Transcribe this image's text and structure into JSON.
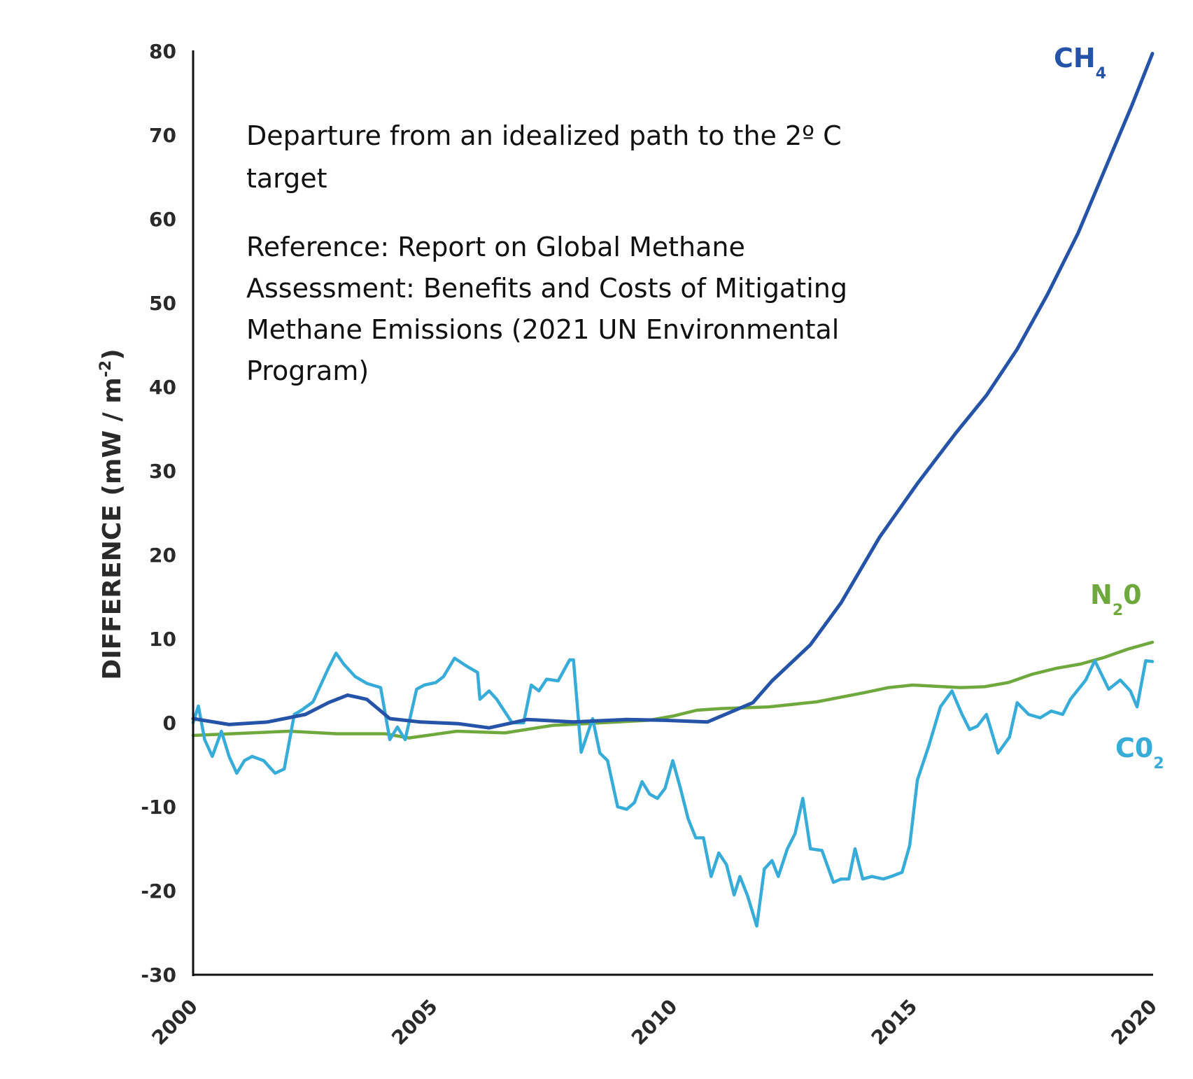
{
  "chart_data": {
    "type": "line",
    "title": "",
    "annotations": {
      "title_lines": [
        "Departure from an idealized path to the 2º C",
        "target"
      ],
      "reference_lines": [
        "Reference: Report on Global Methane",
        "Assessment: Benefits and Costs of Mitigating",
        "Methane Emissions (2021 UN Environmental",
        "Program)"
      ]
    },
    "xlabel": "",
    "ylabel": "DIFFERENCE (mW / m-2)",
    "ylabel_parts": {
      "main": "DIFFERENCE (mW / m",
      "sup": "-2",
      "end": ")"
    },
    "xlim": [
      2000,
      2020
    ],
    "ylim": [
      -30,
      80
    ],
    "xticks": [
      "2000",
      "2005",
      "2010",
      "2015",
      "2020"
    ],
    "yticks": [
      "80",
      "70",
      "60",
      "50",
      "40",
      "30",
      "20",
      "10",
      "0",
      "-10",
      "-20",
      "-30"
    ],
    "grid": false,
    "legend": "inline labels at line ends",
    "series": [
      {
        "name": "CH4",
        "label_main": "CH",
        "label_sub": "4",
        "color": "#2553a8",
        "x": [
          2000,
          2000.75,
          2001.55,
          2002.34,
          2002.82,
          2003.22,
          2003.62,
          2004.1,
          2004.74,
          2005.53,
          2006.17,
          2006.97,
          2007.93,
          2009.04,
          2009.84,
          2010.72,
          2011.67,
          2012.07,
          2012.87,
          2013.51,
          2014.31,
          2015.1,
          2015.9,
          2016.54,
          2017.18,
          2017.81,
          2018.45,
          2019.09,
          2019.57,
          2020
        ],
        "y": [
          0.5,
          -0.2,
          0.1,
          1.0,
          2.4,
          3.3,
          2.8,
          0.5,
          0.1,
          -0.1,
          -0.6,
          0.4,
          0.1,
          0.4,
          0.3,
          0.1,
          2.4,
          5.0,
          9.3,
          14.3,
          22.1,
          28.5,
          34.5,
          39.0,
          44.5,
          51.0,
          58.3,
          67.0,
          73.5,
          79.7
        ]
      },
      {
        "name": "N2O",
        "label_main": "N",
        "label_sub": "2",
        "label_end": "0",
        "color": "#6fa83d",
        "x": [
          2000,
          2002,
          2003,
          2004,
          2004.5,
          2005.5,
          2006.5,
          2007.5,
          2008.5,
          2009.5,
          2010,
          2010.5,
          2011,
          2012,
          2013,
          2014,
          2014.5,
          2015,
          2016,
          2016.5,
          2017,
          2017.5,
          2018,
          2018.5,
          2019,
          2019.5,
          2020
        ],
        "y": [
          -1.5,
          -1.0,
          -1.3,
          -1.3,
          -1.8,
          -1.0,
          -1.2,
          -0.3,
          0.0,
          0.3,
          0.8,
          1.5,
          1.7,
          1.9,
          2.5,
          3.6,
          4.2,
          4.5,
          4.2,
          4.3,
          4.8,
          5.8,
          6.5,
          7.0,
          7.8,
          8.8,
          9.6
        ]
      },
      {
        "name": "CO2",
        "label_main": "C0",
        "label_sub": "2",
        "color": "#38acd8",
        "x": [
          2000,
          2000.11,
          2000.24,
          2000.4,
          2000.59,
          2000.75,
          2000.91,
          2001.07,
          2001.23,
          2001.47,
          2001.71,
          2001.9,
          2002.11,
          2002.26,
          2002.5,
          2002.66,
          2002.82,
          2002.98,
          2003.14,
          2003.38,
          2003.62,
          2003.91,
          2004.1,
          2004.26,
          2004.42,
          2004.66,
          2004.82,
          2005.06,
          2005.22,
          2005.45,
          2005.69,
          2005.93,
          2005.98,
          2006.17,
          2006.33,
          2006.65,
          2006.89,
          2007.05,
          2007.21,
          2007.37,
          2007.61,
          2007.85,
          2007.93,
          2008.09,
          2008.33,
          2008.48,
          2008.64,
          2008.85,
          2009.04,
          2009.2,
          2009.36,
          2009.52,
          2009.68,
          2009.84,
          2010.0,
          2010.16,
          2010.32,
          2010.48,
          2010.64,
          2010.8,
          2010.96,
          2011.12,
          2011.28,
          2011.4,
          2011.56,
          2011.75,
          2011.91,
          2012.07,
          2012.2,
          2012.39,
          2012.55,
          2012.71,
          2012.87,
          2013.11,
          2013.35,
          2013.51,
          2013.67,
          2013.8,
          2013.96,
          2014.15,
          2014.39,
          2014.55,
          2014.78,
          2014.94,
          2015.1,
          2015.34,
          2015.58,
          2015.82,
          2016.03,
          2016.19,
          2016.35,
          2016.54,
          2016.78,
          2017.02,
          2017.18,
          2017.42,
          2017.66,
          2017.89,
          2018.13,
          2018.29,
          2018.61,
          2018.8,
          2019.09,
          2019.33,
          2019.54,
          2019.68,
          2019.86,
          2020.0
        ],
        "y": [
          0,
          2,
          -2,
          -4,
          -1,
          -4,
          -6,
          -4.5,
          -4,
          -4.5,
          -6,
          -5.5,
          1,
          1.5,
          2.5,
          4.5,
          6.5,
          8.3,
          7,
          5.5,
          4.7,
          4.2,
          -2,
          -0.5,
          -2,
          4,
          4.5,
          4.8,
          5.5,
          7.7,
          6.8,
          6,
          2.8,
          3.8,
          2.8,
          0,
          0,
          4.5,
          3.8,
          5.2,
          5.0,
          7.5,
          7.5,
          -3.5,
          0.5,
          -3.6,
          -4.5,
          -10,
          -10.3,
          -9.5,
          -7,
          -8.5,
          -9,
          -7.8,
          -4.5,
          -7.8,
          -11.4,
          -13.7,
          -13.7,
          -18.3,
          -15.5,
          -16.9,
          -20.5,
          -18.3,
          -20.6,
          -24.2,
          -17.4,
          -16.4,
          -18.3,
          -15,
          -13.2,
          -9,
          -15,
          -15.2,
          -19,
          -18.6,
          -18.6,
          -15,
          -18.6,
          -18.3,
          -18.6,
          -18.3,
          -17.8,
          -14.6,
          -6.8,
          -2.7,
          1.9,
          3.8,
          1.0,
          -0.8,
          -0.4,
          1.0,
          -3.6,
          -1.7,
          2.4,
          1.0,
          0.6,
          1.4,
          1.0,
          2.8,
          5.1,
          7.4,
          4.0,
          5.1,
          3.8,
          1.9,
          7.4,
          7.3
        ]
      }
    ]
  }
}
